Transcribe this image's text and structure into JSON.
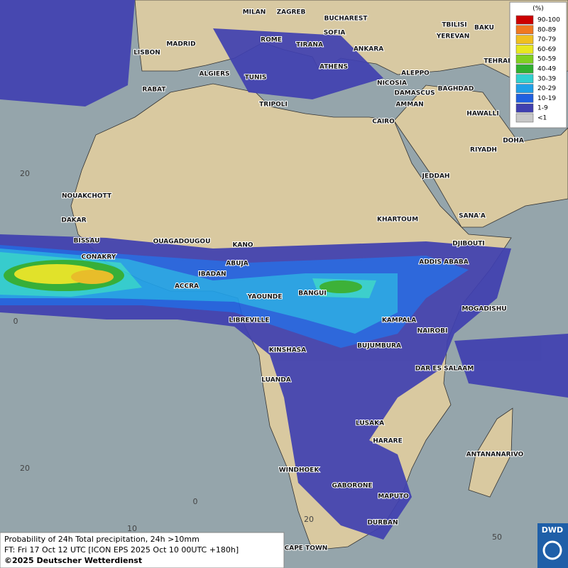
{
  "legend": {
    "title": "(%)",
    "items": [
      {
        "label": "90-100",
        "color": "#cc0000"
      },
      {
        "label": "80-89",
        "color": "#f07820"
      },
      {
        "label": "70-79",
        "color": "#f0c020"
      },
      {
        "label": "60-69",
        "color": "#e8e820"
      },
      {
        "label": "50-59",
        "color": "#80d020"
      },
      {
        "label": "40-49",
        "color": "#30b030"
      },
      {
        "label": "30-39",
        "color": "#30d0d0"
      },
      {
        "label": "20-29",
        "color": "#20a0e8"
      },
      {
        "label": "10-19",
        "color": "#2060e0"
      },
      {
        "label": "1-9",
        "color": "#4040b0"
      },
      {
        "label": "<1",
        "color": "#c8c8c8"
      }
    ]
  },
  "cities": [
    "MILAN",
    "ZAGREB",
    "BUCHAREST",
    "TBILISI",
    "BAKU",
    "ROME",
    "SOFIA",
    "YEREVAN",
    "MADRID",
    "TIRANA",
    "ANKARA",
    "TEHRAN",
    "LISBON",
    "ATHENS",
    "ALGIERS",
    "TUNIS",
    "ALEPPO",
    "RABAT",
    "NICOSIA",
    "BAGHDAD",
    "DAMASCUS",
    "TRIPOLI",
    "AMMAN",
    "HAWALLI",
    "CAIRO",
    "DOHA",
    "RIYADH",
    "NOUAKCHOTT",
    "JEDDAH",
    "DAKAR",
    "KHARTOUM",
    "SANA'A",
    "BISSAU",
    "OUAGADOUGOU",
    "KANO",
    "DJIBOUTI",
    "CONAKRY",
    "ABUJA",
    "ADDIS ABABA",
    "IBADAN",
    "ACCRA",
    "BANGUI",
    "YAOUNDE",
    "MOGADISHU",
    "LIBREVILLE",
    "KAMPALA",
    "NAIROBI",
    "BUJUMBURA",
    "KINSHASA",
    "DAR ES SALAAM",
    "LUANDA",
    "LUSAKA",
    "ANTANANARIVO",
    "HARARE",
    "WINDHOEK",
    "GABORONE",
    "MAPUTO",
    "DURBAN",
    "CAPE TOWN"
  ],
  "grid_labels": [
    "20",
    "0",
    "20",
    "10",
    "0",
    "20",
    "50"
  ],
  "caption": {
    "line1": "Probability of 24h Total precipitation, 24h >10mm",
    "line2": "FT: Fri 17 Oct 12 UTC [ICON EPS 2025 Oct 10 00UTC +180h]",
    "line3": "©2025 Deutscher Wetterdienst"
  },
  "logo": "DWD"
}
